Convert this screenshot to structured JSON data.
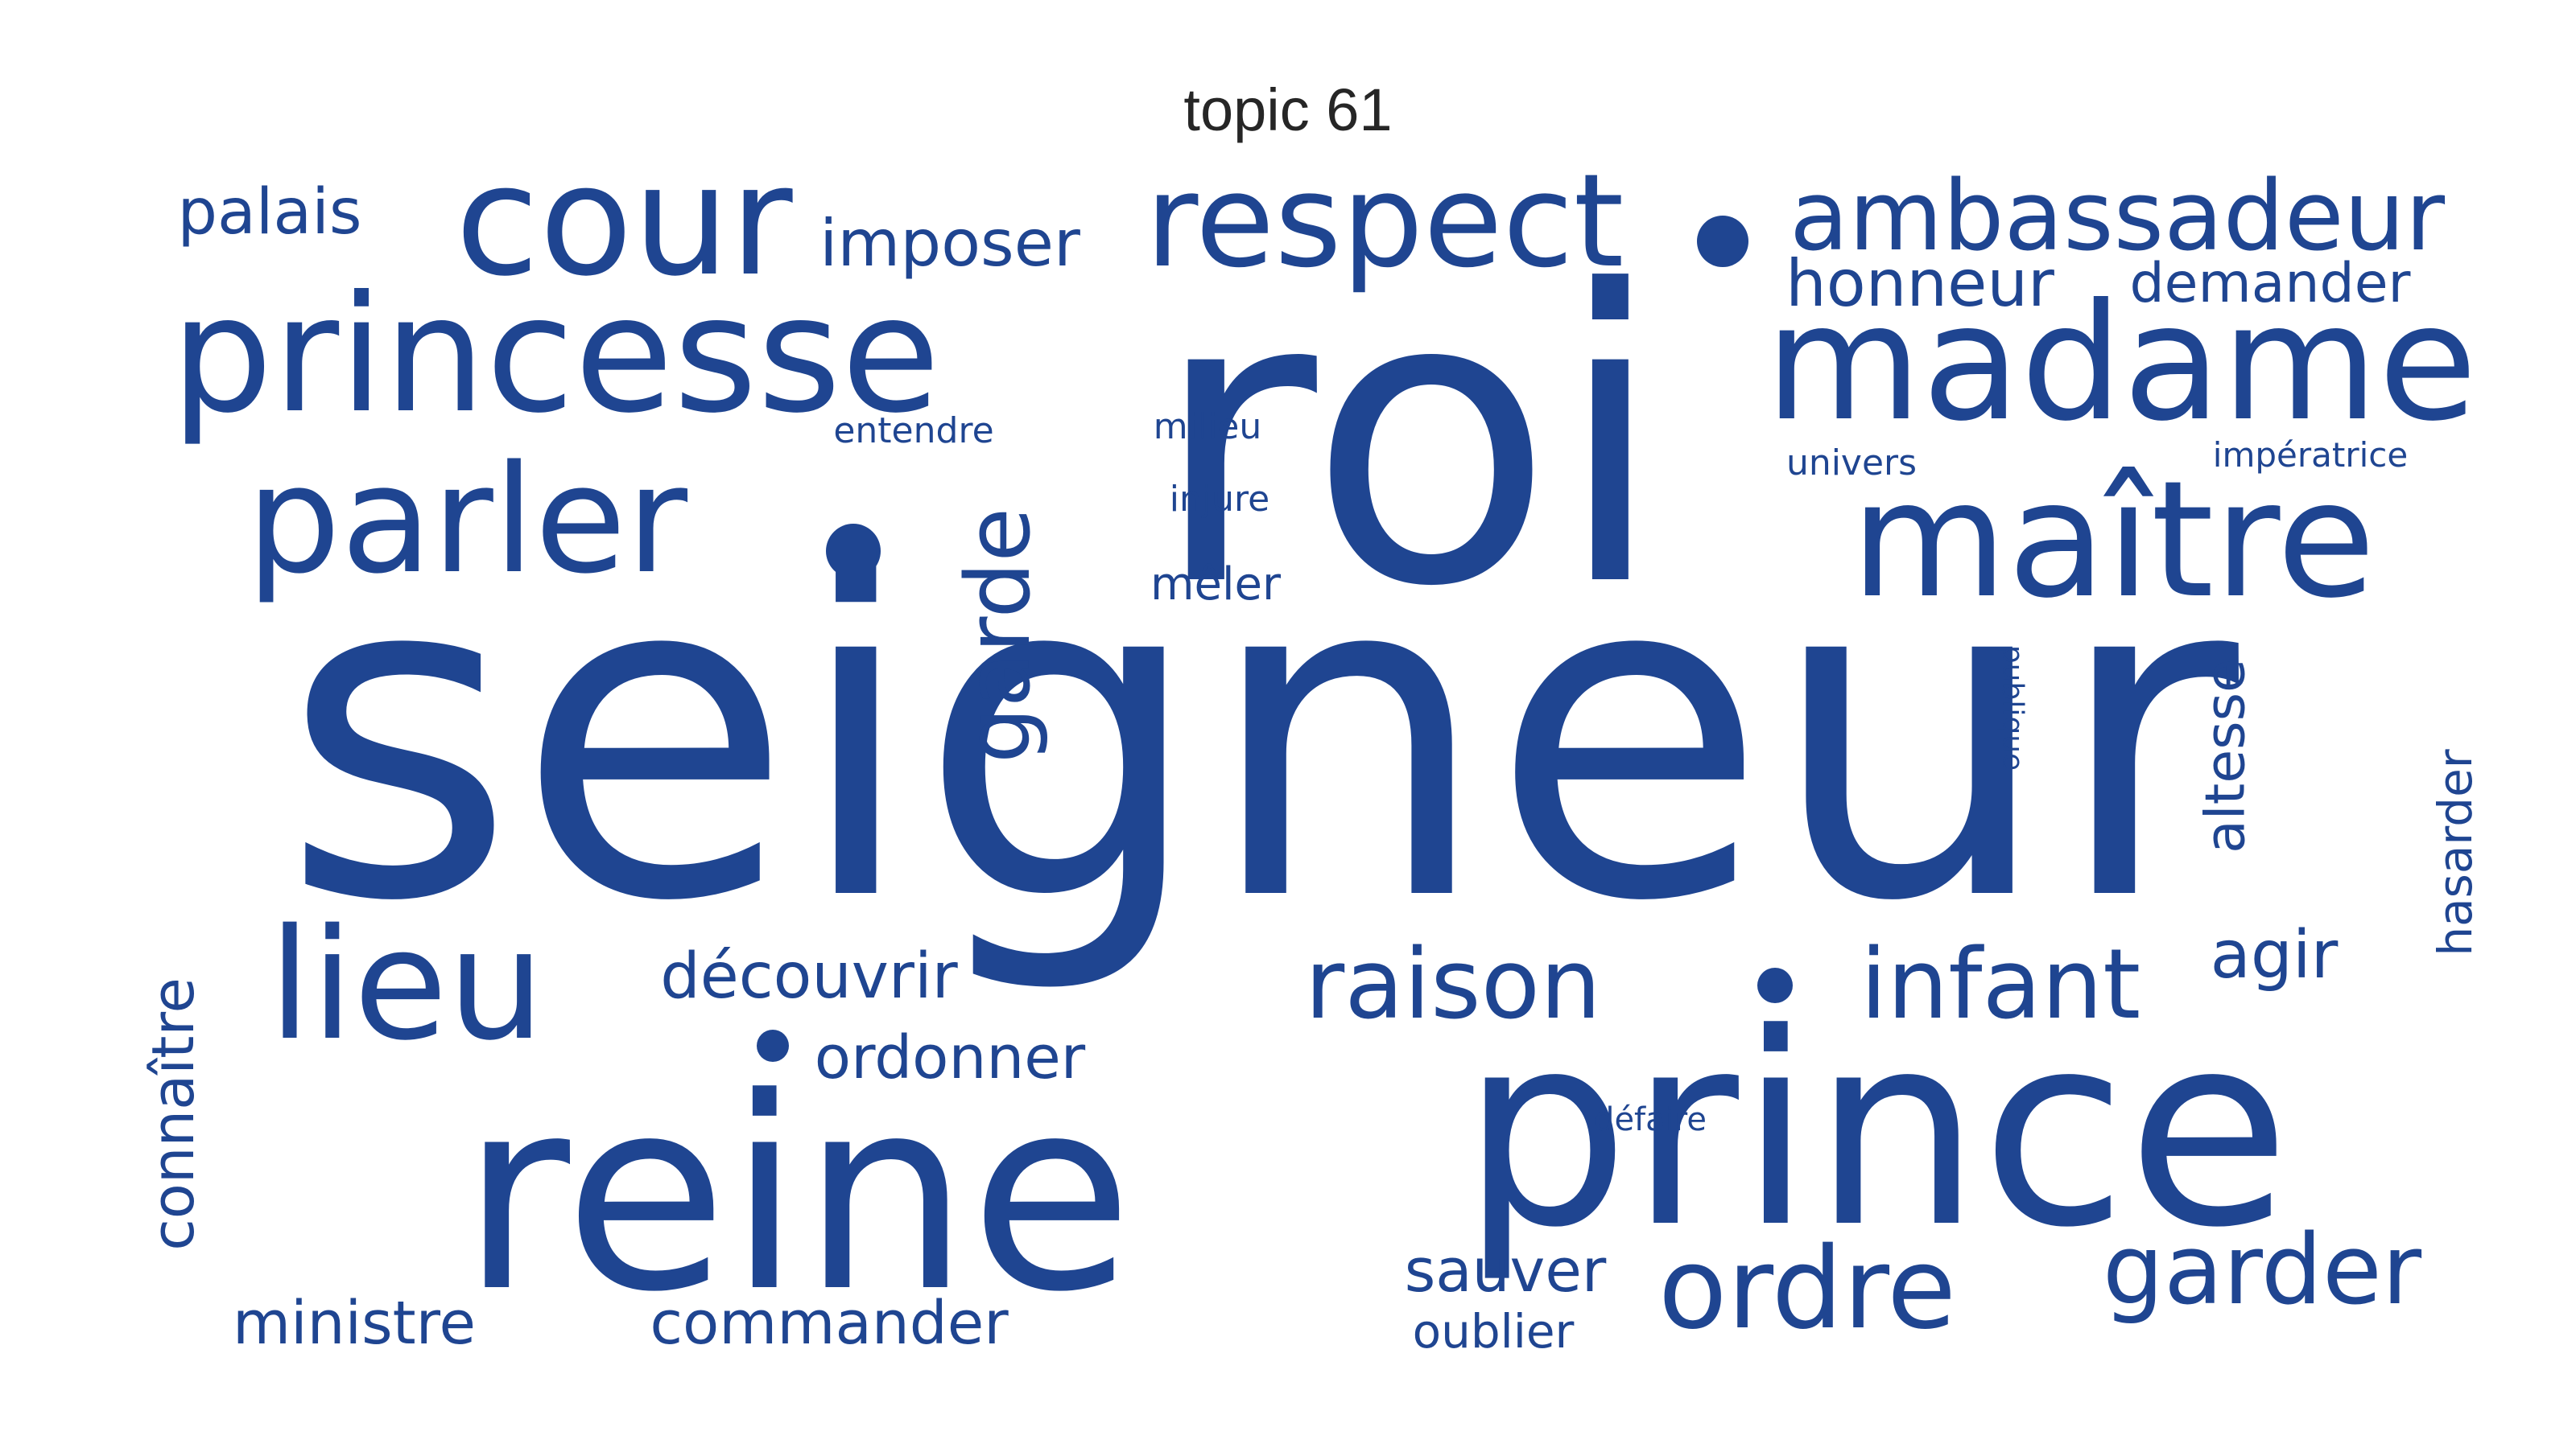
{
  "title": "topic 61",
  "color": "#1f4591",
  "words": [
    {
      "name": "word-seigneur",
      "text": "seigneur"
    },
    {
      "name": "word-roi",
      "text": "roi"
    },
    {
      "name": "word-prince",
      "text": "prince"
    },
    {
      "name": "word-reine",
      "text": "reine"
    },
    {
      "name": "word-princesse",
      "text": "princesse"
    },
    {
      "name": "word-madame",
      "text": "madame"
    },
    {
      "name": "word-maitre",
      "text": "maître"
    },
    {
      "name": "word-parler",
      "text": "parler"
    },
    {
      "name": "word-cour",
      "text": "cour"
    },
    {
      "name": "word-respect",
      "text": "respect"
    },
    {
      "name": "word-ambassadeur",
      "text": "ambassadeur"
    },
    {
      "name": "word-lieu",
      "text": "lieu"
    },
    {
      "name": "word-ordre",
      "text": "ordre"
    },
    {
      "name": "word-garder",
      "text": "garder"
    },
    {
      "name": "word-raison",
      "text": "raison"
    },
    {
      "name": "word-infant",
      "text": "infant"
    },
    {
      "name": "word-garde",
      "text": "garde"
    },
    {
      "name": "word-palais",
      "text": "palais"
    },
    {
      "name": "word-imposer",
      "text": "imposer"
    },
    {
      "name": "word-honneur",
      "text": "honneur"
    },
    {
      "name": "word-demander",
      "text": "demander"
    },
    {
      "name": "word-ordonner",
      "text": "ordonner"
    },
    {
      "name": "word-decouvrir",
      "text": "découvrir"
    },
    {
      "name": "word-agir",
      "text": "agir"
    },
    {
      "name": "word-altesse",
      "text": "altesse"
    },
    {
      "name": "word-hasarder",
      "text": "hasarder"
    },
    {
      "name": "word-connaitre",
      "text": "connaître"
    },
    {
      "name": "word-ministre",
      "text": "ministre"
    },
    {
      "name": "word-commander",
      "text": "commander"
    },
    {
      "name": "word-sauver",
      "text": "sauver"
    },
    {
      "name": "word-oublier",
      "text": "oublier"
    },
    {
      "name": "word-meler",
      "text": "mêler"
    },
    {
      "name": "word-injure",
      "text": "injure"
    },
    {
      "name": "word-milieu",
      "text": "milieu"
    },
    {
      "name": "word-entendre",
      "text": "entendre"
    },
    {
      "name": "word-univers",
      "text": "univers"
    },
    {
      "name": "word-imperatrice",
      "text": "impératrice"
    },
    {
      "name": "word-publique",
      "text": "publique"
    },
    {
      "name": "word-defaire",
      "text": "défaire"
    }
  ]
}
